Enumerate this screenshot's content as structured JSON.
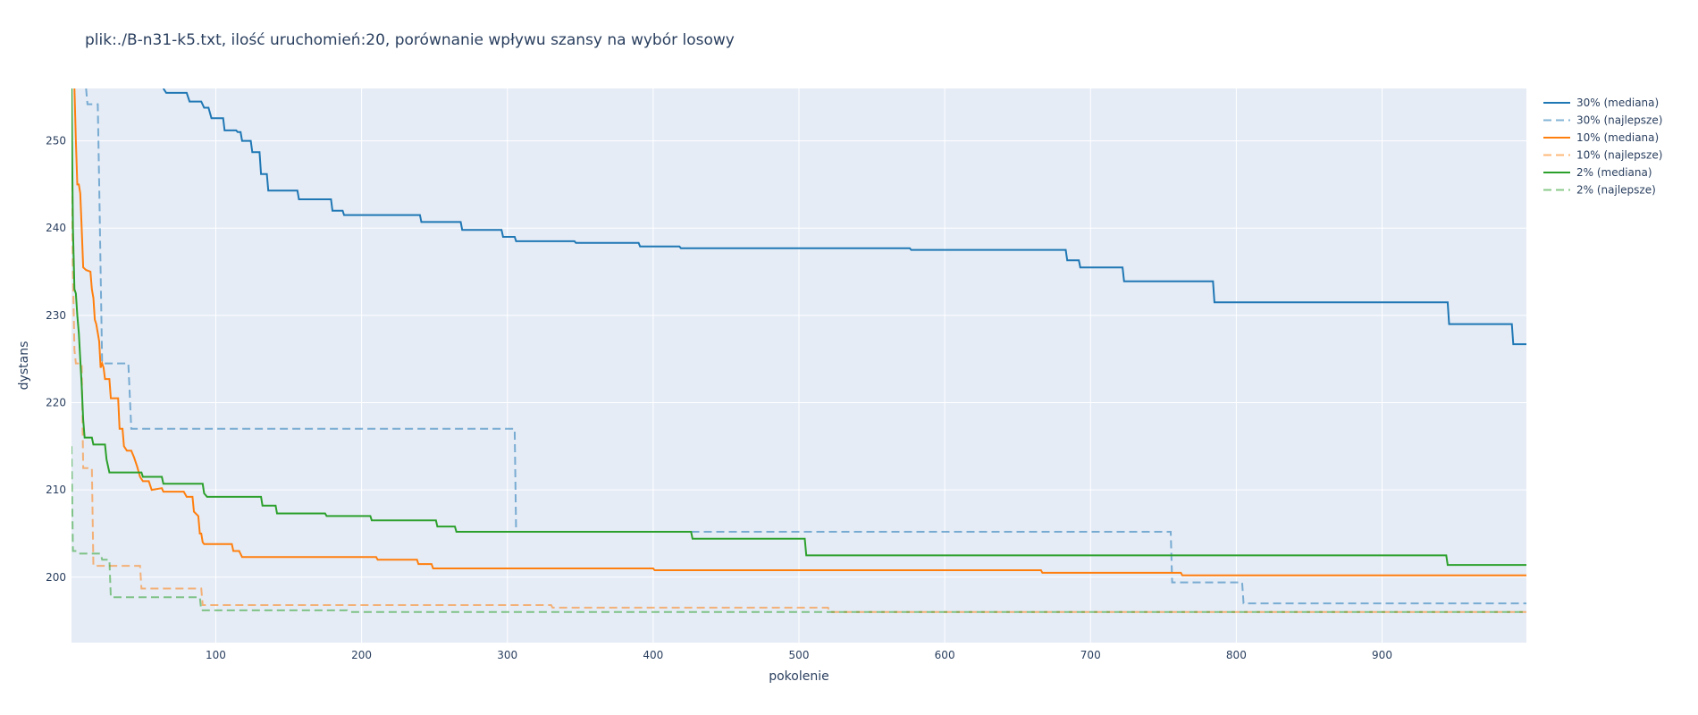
{
  "chart_data": {
    "type": "line",
    "title": "plik:./B-n31-k5.txt, ilość uruchomień:20, porównanie wpływu szansy na wybór losowy",
    "xlabel": "pokolenie",
    "ylabel": "dystans",
    "xlim": [
      1,
      999
    ],
    "ylim": [
      192.5,
      256
    ],
    "xticks": [
      100,
      200,
      300,
      400,
      500,
      600,
      700,
      800,
      900
    ],
    "yticks": [
      200,
      210,
      220,
      230,
      240,
      250
    ],
    "grid": true,
    "legend_position": "right",
    "plot_background": "#e5ecf6",
    "series": [
      {
        "name": "30% (mediana)",
        "color": "#1f77b4",
        "dash": "solid",
        "points": [
          [
            64,
            256
          ],
          [
            66,
            255.5
          ],
          [
            80,
            255.5
          ],
          [
            82,
            254.5
          ],
          [
            90,
            254.5
          ],
          [
            92,
            253.8
          ],
          [
            95,
            253.8
          ],
          [
            97,
            252.6
          ],
          [
            105,
            252.6
          ],
          [
            106,
            251.2
          ],
          [
            114,
            251.2
          ],
          [
            115,
            251
          ],
          [
            117,
            251
          ],
          [
            118,
            250
          ],
          [
            124,
            250
          ],
          [
            125,
            248.7
          ],
          [
            130,
            248.7
          ],
          [
            131,
            246.2
          ],
          [
            135,
            246.2
          ],
          [
            136,
            244.3
          ],
          [
            156,
            244.3
          ],
          [
            157,
            243.3
          ],
          [
            179,
            243.3
          ],
          [
            180,
            242
          ],
          [
            187,
            242
          ],
          [
            188,
            241.5
          ],
          [
            240,
            241.5
          ],
          [
            241,
            240.7
          ],
          [
            268,
            240.7
          ],
          [
            269,
            239.8
          ],
          [
            296,
            239.8
          ],
          [
            297,
            239
          ],
          [
            305,
            239
          ],
          [
            306,
            238.5
          ],
          [
            346,
            238.5
          ],
          [
            347,
            238.3
          ],
          [
            390,
            238.3
          ],
          [
            391,
            237.9
          ],
          [
            418,
            237.9
          ],
          [
            419,
            237.7
          ],
          [
            576,
            237.7
          ],
          [
            577,
            237.5
          ],
          [
            683,
            237.5
          ],
          [
            684,
            236.3
          ],
          [
            692,
            236.3
          ],
          [
            693,
            235.5
          ],
          [
            722,
            235.5
          ],
          [
            723,
            233.9
          ],
          [
            784,
            233.9
          ],
          [
            785,
            231.5
          ],
          [
            945,
            231.5
          ],
          [
            946,
            229
          ],
          [
            989,
            229
          ],
          [
            990,
            226.7
          ],
          [
            999,
            226.7
          ]
        ]
      },
      {
        "name": "30% (najlepsze)",
        "color": "#1f77b4",
        "dash": "dash",
        "points": [
          [
            11,
            256
          ],
          [
            12,
            254.2
          ],
          [
            19,
            254.2
          ],
          [
            20,
            245
          ],
          [
            21,
            235
          ],
          [
            22,
            224.5
          ],
          [
            40,
            224.5
          ],
          [
            42,
            217
          ],
          [
            305,
            217
          ],
          [
            306,
            205.2
          ],
          [
            755,
            205.2
          ],
          [
            756,
            199.4
          ],
          [
            804,
            199.4
          ],
          [
            805,
            197
          ],
          [
            999,
            197
          ]
        ]
      },
      {
        "name": "10% (mediana)",
        "color": "#ff7f0e",
        "dash": "solid",
        "points": [
          [
            3,
            256
          ],
          [
            4,
            250
          ],
          [
            5,
            245
          ],
          [
            6,
            245
          ],
          [
            7,
            244
          ],
          [
            8,
            240
          ],
          [
            9,
            235.5
          ],
          [
            11,
            235.2
          ],
          [
            14,
            235
          ],
          [
            15,
            233
          ],
          [
            16,
            232
          ],
          [
            17,
            229.5
          ],
          [
            18,
            229
          ],
          [
            19,
            228
          ],
          [
            20,
            227
          ],
          [
            21,
            224
          ],
          [
            22,
            224.5
          ],
          [
            23,
            224
          ],
          [
            24,
            222.7
          ],
          [
            27,
            222.7
          ],
          [
            28,
            220.5
          ],
          [
            33,
            220.5
          ],
          [
            34,
            217
          ],
          [
            36,
            217
          ],
          [
            37,
            215
          ],
          [
            39,
            214.5
          ],
          [
            42,
            214.5
          ],
          [
            44,
            213.7
          ],
          [
            46,
            212.7
          ],
          [
            48,
            211.5
          ],
          [
            50,
            211
          ],
          [
            54,
            211
          ],
          [
            56,
            210
          ],
          [
            63,
            210.2
          ],
          [
            64,
            209.8
          ],
          [
            78,
            209.8
          ],
          [
            80,
            209.2
          ],
          [
            84,
            209.2
          ],
          [
            85,
            207.5
          ],
          [
            88,
            207
          ],
          [
            89,
            205
          ],
          [
            90,
            205
          ],
          [
            91,
            204
          ],
          [
            92,
            203.8
          ],
          [
            111,
            203.8
          ],
          [
            112,
            203
          ],
          [
            116,
            203
          ],
          [
            118,
            202.3
          ],
          [
            210,
            202.3
          ],
          [
            211,
            202
          ],
          [
            238,
            202
          ],
          [
            239,
            201.5
          ],
          [
            248,
            201.5
          ],
          [
            249,
            201
          ],
          [
            400,
            201
          ],
          [
            401,
            200.8
          ],
          [
            666,
            200.8
          ],
          [
            667,
            200.5
          ],
          [
            762,
            200.5
          ],
          [
            763,
            200.2
          ],
          [
            999,
            200.2
          ]
        ]
      },
      {
        "name": "10% (najlepsze)",
        "color": "#ff7f0e",
        "dash": "dash",
        "points": [
          [
            1,
            248
          ],
          [
            2,
            235
          ],
          [
            3,
            226
          ],
          [
            4,
            224.5
          ],
          [
            8,
            224.5
          ],
          [
            9,
            212.5
          ],
          [
            15,
            212.5
          ],
          [
            16,
            201.3
          ],
          [
            48,
            201.3
          ],
          [
            49,
            198.7
          ],
          [
            90,
            198.7
          ],
          [
            91,
            196.8
          ],
          [
            330,
            196.8
          ],
          [
            331,
            196.5
          ],
          [
            520,
            196.5
          ],
          [
            521,
            196
          ],
          [
            999,
            196
          ]
        ]
      },
      {
        "name": "2% (mediana)",
        "color": "#2ca02c",
        "dash": "solid",
        "points": [
          [
            1,
            256
          ],
          [
            2,
            240
          ],
          [
            3,
            233
          ],
          [
            4,
            232.5
          ],
          [
            5,
            230
          ],
          [
            6,
            228
          ],
          [
            7,
            225
          ],
          [
            8,
            222
          ],
          [
            9,
            218
          ],
          [
            10,
            216
          ],
          [
            15,
            216
          ],
          [
            16,
            215.2
          ],
          [
            24,
            215.2
          ],
          [
            25,
            213.5
          ],
          [
            27,
            212
          ],
          [
            49,
            212
          ],
          [
            50,
            211.5
          ],
          [
            63,
            211.5
          ],
          [
            64,
            210.7
          ],
          [
            91,
            210.7
          ],
          [
            92,
            209.6
          ],
          [
            94,
            209.2
          ],
          [
            131,
            209.2
          ],
          [
            132,
            208.2
          ],
          [
            141,
            208.2
          ],
          [
            142,
            207.3
          ],
          [
            175,
            207.3
          ],
          [
            176,
            207
          ],
          [
            206,
            207
          ],
          [
            207,
            206.5
          ],
          [
            251,
            206.5
          ],
          [
            252,
            205.8
          ],
          [
            264,
            205.8
          ],
          [
            265,
            205.2
          ],
          [
            426,
            205.2
          ],
          [
            427,
            204.4
          ],
          [
            504,
            204.4
          ],
          [
            505,
            202.5
          ],
          [
            944,
            202.5
          ],
          [
            945,
            201.4
          ],
          [
            999,
            201.4
          ]
        ]
      },
      {
        "name": "2% (najlepsze)",
        "color": "#2ca02c",
        "dash": "dash",
        "points": [
          [
            1,
            215
          ],
          [
            2,
            203
          ],
          [
            5,
            203
          ],
          [
            6,
            202.7
          ],
          [
            21,
            202.7
          ],
          [
            22,
            202
          ],
          [
            27,
            202
          ],
          [
            28,
            197.7
          ],
          [
            89,
            197.7
          ],
          [
            90,
            196.2
          ],
          [
            190,
            196.2
          ],
          [
            191,
            196
          ],
          [
            999,
            196
          ]
        ]
      }
    ]
  }
}
